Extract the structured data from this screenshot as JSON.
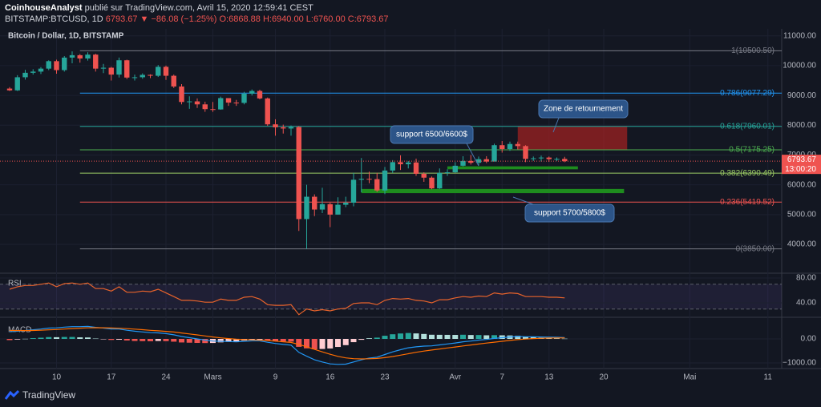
{
  "header": {
    "author": "CoinhouseAnalyst",
    "published": "publié sur TradingView.com, Avril 15, 2020 12:59:41 CEST",
    "symbol": "BITSTAMP:BTCUSD, 1D",
    "price": "6793.67",
    "change": "▼ −86.08 (−1.25%)",
    "ohlc": [
      "O:6868.88",
      "H:6940.00",
      "L:6760.00",
      "C:6793.67"
    ]
  },
  "footer": {
    "brand": "TradingView"
  },
  "chart_data": [
    {
      "type": "candlestick",
      "title": "Bitcoin / Dollar, 1D, BITSTAMP",
      "categories": [
        null,
        null,
        null,
        null,
        null,
        null,
        "10",
        null,
        null,
        null,
        null,
        null,
        null,
        "17",
        null,
        null,
        null,
        null,
        null,
        null,
        "24",
        null,
        null,
        null,
        null,
        null,
        "Mars",
        null,
        null,
        null,
        null,
        null,
        null,
        null,
        "9",
        null,
        null,
        null,
        null,
        null,
        null,
        "16",
        null,
        null,
        null,
        null,
        null,
        null,
        "23",
        null,
        null,
        null,
        null,
        null,
        null,
        null,
        null,
        "Avr",
        null,
        null,
        null,
        null,
        null,
        "7",
        null,
        null,
        null,
        null,
        null,
        "13",
        null,
        null,
        null,
        null,
        null,
        null,
        "20",
        null,
        null,
        null,
        null,
        null,
        null,
        null,
        null,
        null,
        null,
        "Mai",
        null,
        null,
        null,
        null,
        null,
        null,
        null,
        null,
        null,
        "11",
        null,
        null,
        null
      ],
      "open": [
        9230,
        9170,
        9610,
        9760,
        9800,
        9900,
        10150,
        9850,
        10270,
        10350,
        10240,
        10370,
        9900,
        9930,
        9700,
        10180,
        9600,
        9610,
        9690,
        9660,
        9960,
        9660,
        9300,
        8780,
        8800,
        8700,
        8540,
        8530,
        8910,
        8760,
        8750,
        9060,
        9150,
        8900,
        8030,
        7930,
        7890,
        7940,
        4850,
        5600,
        5170,
        5350,
        5000,
        5330,
        5400,
        6170,
        6200,
        6190,
        5810,
        6480,
        6760,
        6690,
        6750,
        6370,
        6240,
        5880,
        6400,
        6420,
        6640,
        6800,
        6740,
        6860,
        6780,
        7330,
        7200,
        7370,
        7300,
        6870,
        6890,
        6915,
        6860,
        6868.88,
        null,
        null,
        null,
        null,
        null,
        null,
        null,
        null,
        null,
        null,
        null,
        null,
        null,
        null,
        null,
        null,
        null,
        null,
        null,
        null,
        null,
        null,
        null,
        null,
        null,
        null,
        null,
        null,
        null
      ],
      "high": [
        9280,
        9680,
        9860,
        9880,
        9950,
        10180,
        10200,
        10320,
        10480,
        10390,
        10450,
        10400,
        10060,
        9960,
        10270,
        10200,
        9700,
        9740,
        9710,
        10020,
        10000,
        9700,
        9380,
        8970,
        8900,
        8790,
        8780,
        8960,
        8900,
        8850,
        9120,
        9200,
        9190,
        8930,
        8200,
        8020,
        7990,
        7970,
        6000,
        5680,
        5900,
        5400,
        5580,
        5600,
        6400,
        6900,
        6440,
        6400,
        6600,
        6830,
        6990,
        6800,
        6880,
        6420,
        6280,
        6550,
        6520,
        6760,
        6960,
        7000,
        6950,
        6960,
        7380,
        7470,
        7450,
        7450,
        7330,
        6950,
        6980,
        6950,
        6920,
        6940,
        null,
        null,
        null,
        null,
        null,
        null,
        null,
        null,
        null,
        null,
        null,
        null,
        null,
        null,
        null,
        null,
        null,
        null,
        null,
        null,
        null,
        null,
        null,
        null,
        null,
        null,
        null,
        null,
        null
      ],
      "low": [
        9150,
        9150,
        9530,
        9700,
        9720,
        9850,
        9730,
        9800,
        10080,
        10100,
        10170,
        9800,
        9750,
        9500,
        9600,
        9550,
        9500,
        9560,
        9580,
        9620,
        9520,
        9250,
        8700,
        8550,
        8580,
        8450,
        8450,
        8520,
        8650,
        8650,
        8700,
        9000,
        8870,
        7980,
        7650,
        7720,
        7650,
        4450,
        3850,
        4950,
        5050,
        4580,
        5000,
        5250,
        5280,
        5750,
        6050,
        5760,
        5690,
        6400,
        6500,
        6550,
        6300,
        6100,
        5850,
        5860,
        6300,
        6400,
        6620,
        6680,
        6650,
        6730,
        6780,
        7080,
        7140,
        7190,
        6760,
        6800,
        6780,
        6770,
        6800,
        6760,
        null,
        null,
        null,
        null,
        null,
        null,
        null,
        null,
        null,
        null,
        null,
        null,
        null,
        null,
        null,
        null,
        null,
        null,
        null,
        null,
        null,
        null,
        null,
        null,
        null,
        null,
        null,
        null,
        null
      ],
      "close": [
        9170,
        9610,
        9760,
        9800,
        9900,
        10150,
        9850,
        10270,
        10350,
        10240,
        10370,
        9900,
        9930,
        9700,
        10180,
        9600,
        9610,
        9690,
        9660,
        9960,
        9660,
        9300,
        8780,
        8800,
        8700,
        8540,
        8530,
        8910,
        8760,
        8750,
        9060,
        9150,
        8900,
        8030,
        7930,
        7890,
        7940,
        4850,
        5600,
        5170,
        5350,
        5000,
        5330,
        5400,
        6170,
        6200,
        6190,
        5810,
        6480,
        6760,
        6690,
        6750,
        6370,
        6240,
        5880,
        6400,
        6420,
        6640,
        6800,
        6740,
        6860,
        6780,
        7330,
        7200,
        7370,
        7300,
        6870,
        6890,
        6915,
        6860,
        6868.88,
        6793.67,
        null,
        null,
        null,
        null,
        null,
        null,
        null,
        null,
        null,
        null,
        null,
        null,
        null,
        null,
        null,
        null,
        null,
        null,
        null,
        null,
        null,
        null,
        null,
        null,
        null,
        null,
        null,
        null,
        null
      ],
      "up_color": "#26a69a",
      "down_color": "#ef5350",
      "ylim": [
        3060,
        11235
      ],
      "yticks": [
        {
          "value": 11000,
          "label": "11000.00"
        },
        {
          "value": 10000,
          "label": "10000.00"
        },
        {
          "value": 9000,
          "label": "9000.00"
        },
        {
          "value": 8000,
          "label": "8000.00"
        },
        {
          "value": 7000,
          "label": "7000.00"
        },
        {
          "value": 6000,
          "label": "6000.00"
        },
        {
          "value": 5000,
          "label": "5000.00"
        },
        {
          "value": 4000,
          "label": "4000.00"
        }
      ],
      "grid": true,
      "last_price": {
        "value": 6793.67,
        "label": "6793.67"
      },
      "countdown": "13:00:20",
      "fib_levels": [
        {
          "value": 10500.5,
          "label": "1(10500.50)",
          "color": "#787b86"
        },
        {
          "value": 9077.29,
          "label": "0.786(9077.29)",
          "color": "#2196f3"
        },
        {
          "value": 7960.01,
          "label": "0.618(7960.01)",
          "color": "#26a69a"
        },
        {
          "value": 7175.25,
          "label": "0.5(7175.25)",
          "color": "#4caf50"
        },
        {
          "value": 6390.49,
          "label": "0.382(6390.49)",
          "color": "#9ccc65"
        },
        {
          "value": 5419.52,
          "label": "0.236(5419.52)",
          "color": "#ef5350"
        },
        {
          "value": 3850,
          "label": "0(3850.00)",
          "color": "#787b86"
        }
      ],
      "zones": [
        {
          "low": 7175,
          "high": 7960,
          "color": "rgba(178,34,34,0.65)",
          "label": "Zone de retournement"
        },
        {
          "low": 6520,
          "high": 6620,
          "color": "#1e8c1e",
          "label": "support 6500/6600$"
        },
        {
          "low": 5720,
          "high": 5860,
          "color": "#1e8c1e",
          "label": "support 5700/5800$"
        }
      ]
    },
    {
      "type": "line",
      "title": "RSI",
      "color": "#e8632b",
      "values": [
        62,
        66,
        68,
        68,
        70,
        72,
        66,
        71,
        72,
        70,
        72,
        63,
        63,
        59,
        66,
        57,
        57,
        59,
        58,
        62,
        56,
        50,
        44,
        44,
        43,
        41,
        41,
        46,
        44,
        44,
        49,
        50,
        46,
        37,
        36,
        36,
        37,
        21,
        30,
        27,
        29,
        27,
        30,
        31,
        39,
        40,
        40,
        37,
        44,
        47,
        46,
        47,
        44,
        43,
        40,
        45,
        45,
        48,
        50,
        49,
        51,
        50,
        56,
        54,
        56,
        55,
        50,
        50,
        50,
        49,
        49,
        48,
        null,
        null,
        null,
        null,
        null,
        null,
        null,
        null,
        null,
        null,
        null,
        null,
        null,
        null,
        null,
        null,
        null,
        null,
        null,
        null,
        null,
        null,
        null,
        null,
        null,
        null,
        null,
        null,
        null
      ],
      "ylim": [
        18,
        86.5
      ],
      "yticks": [
        {
          "value": 80,
          "label": "80.00"
        },
        {
          "value": 40,
          "label": "40.00"
        }
      ],
      "band": [
        30,
        70
      ]
    },
    {
      "type": "macd",
      "title": "MACD",
      "macd_color": "#2196f3",
      "signal_color": "#ff6d00",
      "up_color": "#26a69a",
      "down_color": "#ef5350",
      "macd": [
        300,
        320,
        350,
        380,
        410,
        450,
        460,
        490,
        510,
        510,
        520,
        480,
        450,
        410,
        410,
        360,
        320,
        290,
        260,
        250,
        220,
        170,
        100,
        50,
        0,
        -50,
        -90,
        -100,
        -110,
        -120,
        -100,
        -80,
        -80,
        -140,
        -190,
        -230,
        -260,
        -560,
        -720,
        -870,
        -960,
        -1040,
        -1060,
        -1050,
        -960,
        -870,
        -800,
        -760,
        -650,
        -540,
        -450,
        -370,
        -330,
        -300,
        -290,
        -250,
        -210,
        -170,
        -120,
        -90,
        -50,
        -25,
        20,
        50,
        80,
        100,
        90,
        85,
        80,
        70,
        65,
        55,
        null,
        null,
        null,
        null,
        null,
        null,
        null,
        null,
        null,
        null,
        null,
        null,
        null,
        null,
        null,
        null,
        null,
        null,
        null,
        null,
        null,
        null,
        null,
        null,
        null,
        null,
        null,
        null,
        null
      ],
      "signal": [
        350,
        345,
        345,
        350,
        360,
        375,
        390,
        410,
        430,
        445,
        460,
        465,
        462,
        452,
        444,
        427,
        406,
        383,
        358,
        337,
        313,
        285,
        248,
        208,
        167,
        123,
        80,
        44,
        13,
        -14,
        -31,
        -41,
        -49,
        -67,
        -92,
        -120,
        -148,
        -230,
        -328,
        -436,
        -541,
        -641,
        -725,
        -790,
        -824,
        -833,
        -827,
        -813,
        -781,
        -733,
        -676,
        -615,
        -558,
        -506,
        -463,
        -420,
        -378,
        -336,
        -293,
        -252,
        -212,
        -175,
        -136,
        -99,
        -63,
        -30,
        -6,
        12,
        26,
        35,
        41,
        44,
        null,
        null,
        null,
        null,
        null,
        null,
        null,
        null,
        null,
        null,
        null,
        null,
        null,
        null,
        null,
        null,
        null,
        null,
        null,
        null,
        null,
        null,
        null,
        null,
        null,
        null,
        null,
        null,
        null
      ],
      "histogram": [
        -50,
        -25,
        5,
        30,
        50,
        75,
        70,
        80,
        80,
        65,
        60,
        15,
        -12,
        -42,
        -34,
        -67,
        -86,
        -93,
        -98,
        -87,
        -93,
        -115,
        -148,
        -158,
        -167,
        -173,
        -170,
        -144,
        -123,
        -106,
        -69,
        -39,
        -31,
        -73,
        -98,
        -110,
        -112,
        -330,
        -392,
        -434,
        -419,
        -399,
        -335,
        -260,
        -136,
        -37,
        27,
        53,
        131,
        193,
        226,
        245,
        228,
        206,
        173,
        170,
        168,
        166,
        173,
        162,
        162,
        150,
        156,
        149,
        143,
        130,
        96,
        73,
        54,
        35,
        24,
        11,
        null,
        null,
        null,
        null,
        null,
        null,
        null,
        null,
        null,
        null,
        null,
        null,
        null,
        null,
        null,
        null,
        null,
        null,
        null,
        null,
        null,
        null,
        null,
        null,
        null,
        null,
        null,
        null,
        null
      ],
      "ylim": [
        -1233,
        833
      ],
      "yticks": [
        {
          "value": 0,
          "label": "0.00"
        },
        {
          "value": -1000,
          "label": "−1000.00"
        }
      ]
    }
  ]
}
